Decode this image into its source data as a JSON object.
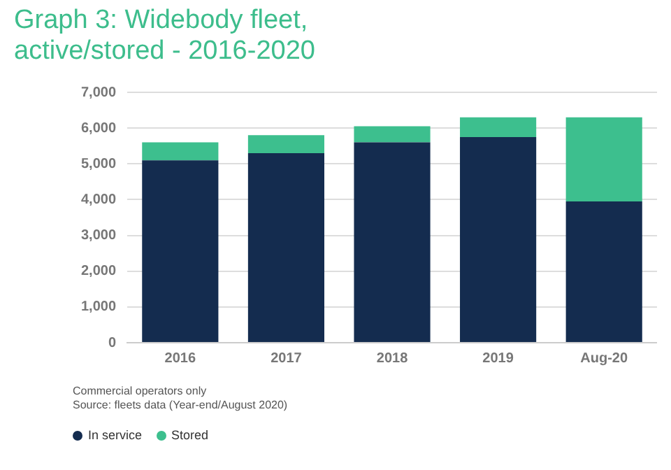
{
  "chart_data": {
    "type": "bar",
    "title": "Graph 3: Widebody fleet, active/stored - 2016-2020",
    "categories": [
      "2016",
      "2017",
      "2018",
      "2019",
      "Aug-20"
    ],
    "series": [
      {
        "name": "In service",
        "color": "#142c4f",
        "values": [
          5100,
          5300,
          5600,
          5750,
          3950
        ]
      },
      {
        "name": "Stored",
        "color": "#3dbf8e",
        "values": [
          500,
          500,
          450,
          550,
          2350
        ]
      }
    ],
    "stacked": true,
    "ylim": [
      0,
      7000
    ],
    "yticks": [
      0,
      {
        "value": 1000,
        "label": "1,000"
      },
      {
        "value": 2000,
        "label": "2,000"
      },
      {
        "value": 3000,
        "label": "3,000"
      },
      {
        "value": 4000,
        "label": "4,000"
      },
      {
        "value": 5000,
        "label": "5,000"
      },
      {
        "value": 6000,
        "label": "6,000"
      },
      {
        "value": 7000,
        "label": "7,000"
      }
    ],
    "grid": "y",
    "legend": "bottom left",
    "annotations": [
      "Commercial operators only",
      "Source: fleets data (Year-end/August 2020)"
    ]
  }
}
